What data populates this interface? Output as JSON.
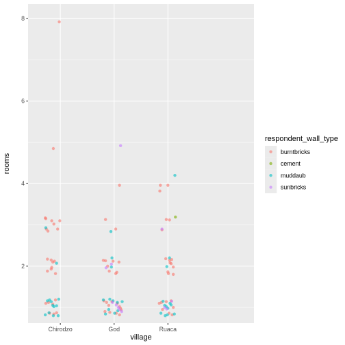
{
  "chart_data": {
    "type": "scatter",
    "subtype": "jitter",
    "xlabel": "village",
    "ylabel": "rooms",
    "categories": [
      "Chirodzo",
      "God",
      "Ruaca"
    ],
    "ylim": [
      0.62,
      8.35
    ],
    "yticks": [
      2,
      4,
      6,
      8
    ],
    "grid": true,
    "legend": {
      "title": "respondent_wall_type",
      "position": "right",
      "entries": [
        {
          "name": "burntbricks",
          "color": "#F8766D"
        },
        {
          "name": "cement",
          "color": "#7CAE00"
        },
        {
          "name": "muddaub",
          "color": "#00BFC4"
        },
        {
          "name": "sunbricks",
          "color": "#C77CFF"
        }
      ]
    },
    "series": [
      {
        "name": "burntbricks",
        "color": "#F8766D",
        "points": [
          [
            "Chirodzo",
            -0.02,
            7.92
          ],
          [
            "Chirodzo",
            -0.13,
            4.85
          ],
          [
            "Chirodzo",
            -0.28,
            3.17
          ],
          [
            "Chirodzo",
            -0.27,
            3.15
          ],
          [
            "Chirodzo",
            -0.26,
            2.9
          ],
          [
            "Chirodzo",
            -0.23,
            2.85
          ],
          [
            "Chirodzo",
            -0.12,
            3.02
          ],
          [
            "Chirodzo",
            -0.16,
            3.1
          ],
          [
            "Chirodzo",
            -0.05,
            2.9
          ],
          [
            "Chirodzo",
            -0.01,
            3.1
          ],
          [
            "Chirodzo",
            -0.24,
            2.17
          ],
          [
            "Chirodzo",
            -0.17,
            2.15
          ],
          [
            "Chirodzo",
            -0.11,
            2.12
          ],
          [
            "Chirodzo",
            -0.14,
            2.1
          ],
          [
            "Chirodzo",
            -0.24,
            1.88
          ],
          [
            "Chirodzo",
            -0.17,
            1.93
          ],
          [
            "Chirodzo",
            -0.16,
            1.97
          ],
          [
            "Chirodzo",
            -0.09,
            1.82
          ],
          [
            "Chirodzo",
            -0.27,
            1.1
          ],
          [
            "Chirodzo",
            -0.22,
            1.12
          ],
          [
            "Chirodzo",
            -0.14,
            1.08
          ],
          [
            "Chirodzo",
            -0.09,
            1.18
          ],
          [
            "Chirodzo",
            -0.2,
            0.86
          ],
          [
            "Chirodzo",
            -0.12,
            0.84
          ],
          [
            "Chirodzo",
            -0.07,
            0.87
          ],
          [
            "God",
            0.1,
            3.96
          ],
          [
            "God",
            -0.16,
            3.13
          ],
          [
            "God",
            0.03,
            2.9
          ],
          [
            "God",
            -0.2,
            2.14
          ],
          [
            "God",
            -0.16,
            2.13
          ],
          [
            "God",
            -0.12,
            2.0
          ],
          [
            "God",
            -0.02,
            2.12
          ],
          [
            "God",
            0.09,
            2.1
          ],
          [
            "God",
            -0.09,
            1.88
          ],
          [
            "God",
            0.05,
            1.85
          ],
          [
            "God",
            0.03,
            1.82
          ],
          [
            "God",
            -0.19,
            1.16
          ],
          [
            "God",
            -0.14,
            1.12
          ],
          [
            "God",
            -0.1,
            1.05
          ],
          [
            "God",
            -0.04,
            1.14
          ],
          [
            "God",
            0.06,
            1.1
          ],
          [
            "God",
            0.1,
            1.02
          ],
          [
            "God",
            0.12,
            0.98
          ],
          [
            "God",
            -0.17,
            0.9
          ],
          [
            "God",
            -0.08,
            0.88
          ],
          [
            "God",
            0.04,
            0.86
          ],
          [
            "God",
            0.1,
            0.82
          ],
          [
            "God",
            0.13,
            0.94
          ],
          [
            "Ruaca",
            -0.14,
            3.96
          ],
          [
            "Ruaca",
            -0.15,
            3.82
          ],
          [
            "Ruaca",
            0.0,
            3.96
          ],
          [
            "Ruaca",
            -0.03,
            3.13
          ],
          [
            "Ruaca",
            0.03,
            3.12
          ],
          [
            "Ruaca",
            -0.11,
            2.88
          ],
          [
            "Ruaca",
            -0.04,
            2.18
          ],
          [
            "Ruaca",
            0.03,
            2.14
          ],
          [
            "Ruaca",
            0.07,
            2.16
          ],
          [
            "Ruaca",
            0.04,
            2.08
          ],
          [
            "Ruaca",
            0.06,
            2.06
          ],
          [
            "Ruaca",
            0.1,
            1.98
          ],
          [
            "Ruaca",
            0.0,
            1.86
          ],
          [
            "Ruaca",
            0.01,
            1.82
          ],
          [
            "Ruaca",
            0.1,
            1.8
          ],
          [
            "Ruaca",
            -0.16,
            1.1
          ],
          [
            "Ruaca",
            -0.12,
            1.12
          ],
          [
            "Ruaca",
            -0.03,
            1.14
          ],
          [
            "Ruaca",
            0.06,
            1.16
          ],
          [
            "Ruaca",
            0.1,
            1.0
          ],
          [
            "Ruaca",
            -0.1,
            0.95
          ],
          [
            "Ruaca",
            0.02,
            0.86
          ],
          [
            "Ruaca",
            0.08,
            0.82
          ]
        ]
      },
      {
        "name": "cement",
        "color": "#7CAE00",
        "points": [
          [
            "Ruaca",
            0.14,
            3.19
          ]
        ]
      },
      {
        "name": "muddaub",
        "color": "#00BFC4",
        "points": [
          [
            "Chirodzo",
            -0.27,
            2.93
          ],
          [
            "Chirodzo",
            -0.07,
            2.07
          ],
          [
            "Chirodzo",
            -0.24,
            1.16
          ],
          [
            "Chirodzo",
            -0.2,
            1.18
          ],
          [
            "Chirodzo",
            -0.17,
            1.14
          ],
          [
            "Chirodzo",
            -0.14,
            1.05
          ],
          [
            "Chirodzo",
            -0.12,
            1.02
          ],
          [
            "Chirodzo",
            -0.07,
            1.04
          ],
          [
            "Chirodzo",
            -0.03,
            1.2
          ],
          [
            "Chirodzo",
            -0.28,
            0.82
          ],
          [
            "Chirodzo",
            -0.21,
            0.87
          ],
          [
            "Chirodzo",
            -0.13,
            0.8
          ],
          [
            "Chirodzo",
            -0.04,
            0.8
          ],
          [
            "God",
            -0.06,
            2.84
          ],
          [
            "God",
            -0.04,
            2.2
          ],
          [
            "God",
            -0.05,
            1.98
          ],
          [
            "God",
            -0.2,
            1.18
          ],
          [
            "God",
            -0.08,
            1.2
          ],
          [
            "God",
            -0.02,
            1.16
          ],
          [
            "God",
            0.06,
            1.12
          ],
          [
            "God",
            0.15,
            1.14
          ],
          [
            "God",
            -0.1,
            0.95
          ],
          [
            "God",
            0.01,
            0.86
          ],
          [
            "God",
            -0.16,
            0.84
          ],
          [
            "God",
            0.07,
            0.92
          ],
          [
            "Ruaca",
            0.13,
            4.2
          ],
          [
            "Ruaca",
            0.03,
            2.2
          ],
          [
            "Ruaca",
            -0.02,
            1.99
          ],
          [
            "Ruaca",
            -0.09,
            1.15
          ],
          [
            "Ruaca",
            -0.06,
            1.05
          ],
          [
            "Ruaca",
            -0.03,
            1.02
          ],
          [
            "Ruaca",
            0.0,
            0.98
          ],
          [
            "Ruaca",
            0.04,
            1.1
          ],
          [
            "Ruaca",
            0.06,
            1.06
          ],
          [
            "Ruaca",
            -0.13,
            0.86
          ],
          [
            "Ruaca",
            -0.05,
            0.8
          ],
          [
            "Ruaca",
            -0.01,
            0.82
          ],
          [
            "Ruaca",
            0.12,
            0.84
          ]
        ]
      },
      {
        "name": "sunbricks",
        "color": "#C77CFF",
        "points": [
          [
            "God",
            0.12,
            4.92
          ],
          [
            "God",
            -0.15,
            1.96
          ],
          [
            "God",
            -0.05,
            2.05
          ],
          [
            "God",
            -0.03,
            1.12
          ],
          [
            "God",
            0.04,
            1.06
          ],
          [
            "God",
            0.08,
            1.0
          ],
          [
            "God",
            0.1,
            0.95
          ],
          [
            "God",
            0.14,
            0.9
          ],
          [
            "Ruaca",
            -0.11,
            2.9
          ],
          [
            "Ruaca",
            -0.06,
            1.0
          ],
          [
            "Ruaca",
            -0.02,
            0.96
          ],
          [
            "Ruaca",
            0.07,
            1.15
          ]
        ]
      }
    ]
  }
}
